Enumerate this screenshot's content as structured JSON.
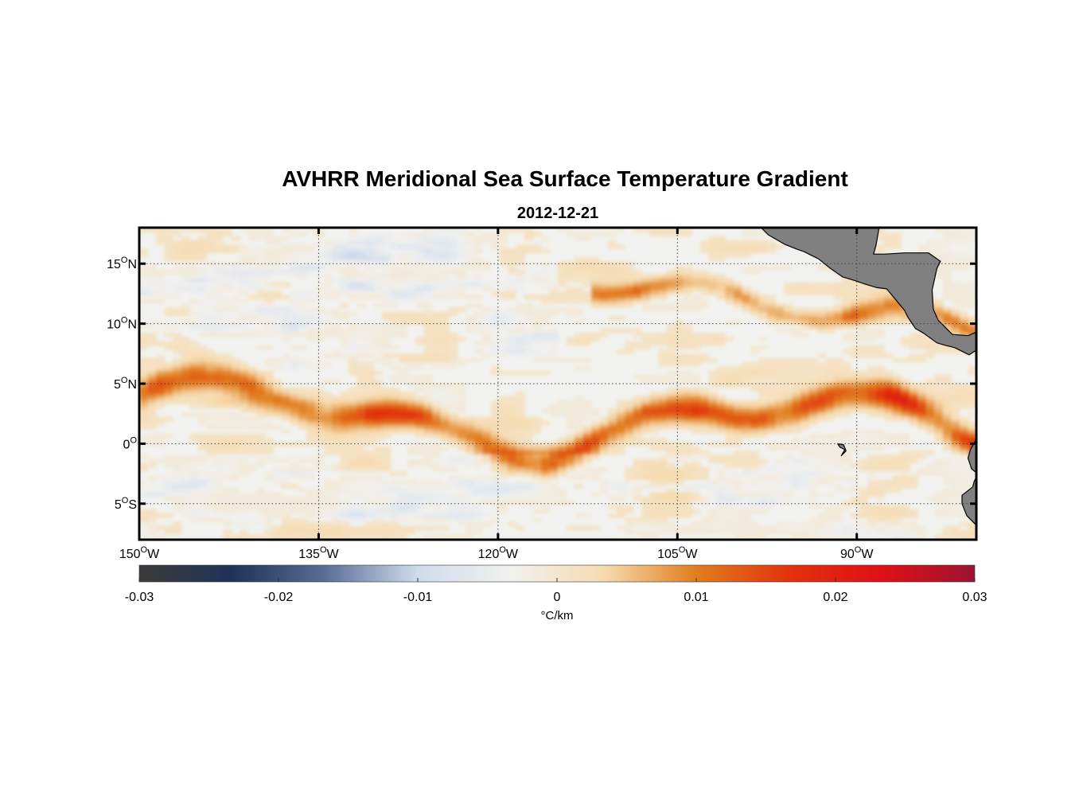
{
  "title": "AVHRR Meridional Sea Surface Temperature Gradient",
  "subtitle": "2012-12-21",
  "map": {
    "type": "heatmap",
    "lon_range": [
      -150,
      -80
    ],
    "lat_range": [
      -8,
      18
    ],
    "grid": "dotted",
    "land_color": "#808080",
    "x_ticks": [
      {
        "value": -150,
        "base": "150",
        "sup": "O",
        "hemi": "W"
      },
      {
        "value": -135,
        "base": "135",
        "sup": "O",
        "hemi": "W"
      },
      {
        "value": -120,
        "base": "120",
        "sup": "O",
        "hemi": "W"
      },
      {
        "value": -105,
        "base": "105",
        "sup": "O",
        "hemi": "W"
      },
      {
        "value": -90,
        "base": "90",
        "sup": "O",
        "hemi": "W"
      }
    ],
    "y_ticks": [
      {
        "value": 15,
        "base": "15",
        "sup": "O",
        "hemi": "N"
      },
      {
        "value": 10,
        "base": "10",
        "sup": "O",
        "hemi": "N"
      },
      {
        "value": 5,
        "base": "5",
        "sup": "O",
        "hemi": "N"
      },
      {
        "value": 0,
        "base": "0",
        "sup": "O",
        "hemi": ""
      },
      {
        "value": -5,
        "base": "5",
        "sup": "O",
        "hemi": "S"
      }
    ]
  },
  "colorbar": {
    "min": -0.03,
    "max": 0.03,
    "label": "°C/km",
    "ticks": [
      "-0.03",
      "-0.02",
      "-0.01",
      "0",
      "0.01",
      "0.02",
      "0.03"
    ],
    "colormap": [
      "#3b3b3b",
      "#1f3358",
      "#5a6d96",
      "#cfdcec",
      "#f1f1ef",
      "#f6dbb0",
      "#e17e1e",
      "#e2320e",
      "#e01016",
      "#9b1330"
    ]
  },
  "chart_data": {
    "type": "heatmap",
    "title": "AVHRR Meridional Sea Surface Temperature Gradient",
    "subtitle": "2012-12-21",
    "xlabel": "",
    "ylabel": "",
    "xlim": [
      -150,
      -80
    ],
    "ylim": [
      -8,
      18
    ],
    "colorbar_label": "°C/km",
    "clim": [
      -0.03,
      0.03
    ]
  }
}
